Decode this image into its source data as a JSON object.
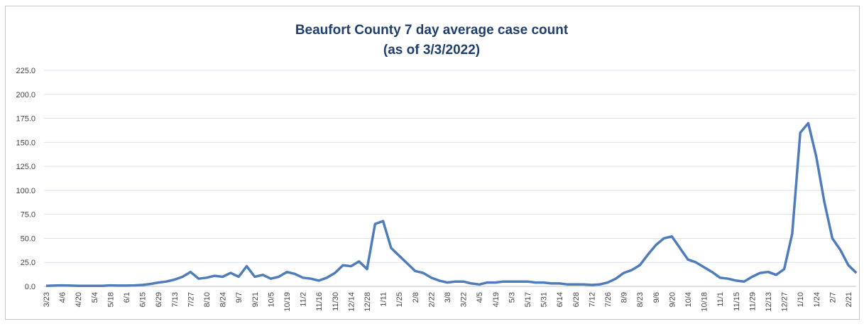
{
  "chart_data": {
    "type": "line",
    "title": [
      "Beaufort County 7 day average case count",
      "(as of 3/3/2022)"
    ],
    "categories": [
      "3/23",
      null,
      "4/6",
      null,
      "4/20",
      null,
      "5/4",
      null,
      "5/18",
      null,
      "6/1",
      null,
      "6/15",
      null,
      "6/29",
      null,
      "7/13",
      null,
      "7/27",
      null,
      "8/10",
      null,
      "8/24",
      null,
      "9/7",
      null,
      "9/21",
      null,
      "10/5",
      null,
      "10/19",
      null,
      "11/2",
      null,
      "11/16",
      null,
      "11/30",
      null,
      "12/14",
      null,
      "12/28",
      null,
      "1/11",
      null,
      "1/25",
      null,
      "2/8",
      null,
      "2/22",
      null,
      "3/8",
      null,
      "3/22",
      null,
      "4/5",
      null,
      "4/19",
      null,
      "5/3",
      null,
      "5/17",
      null,
      "5/31",
      null,
      "6/14",
      null,
      "6/28",
      null,
      "7/12",
      null,
      "7/26",
      null,
      "8/9",
      null,
      "8/23",
      null,
      "9/6",
      null,
      "9/20",
      null,
      "10/4",
      null,
      "10/18",
      null,
      "11/1",
      null,
      "11/15",
      null,
      "11/29",
      null,
      "12/13",
      null,
      "12/27",
      null,
      "1/10",
      null,
      "1/24",
      null,
      "2/7",
      null,
      "2/21",
      null
    ],
    "series": [
      {
        "name": "7 day average",
        "color": "#4f7cba",
        "values": [
          0.5,
          0.8,
          1,
          0.8,
          0.5,
          0.5,
          0.6,
          0.5,
          1,
          0.8,
          0.8,
          1,
          1.5,
          2.5,
          4,
          5,
          7,
          10,
          15,
          8,
          9,
          11,
          10,
          14,
          10,
          21,
          10,
          12,
          8,
          10,
          15,
          13,
          9,
          8,
          6,
          9,
          14,
          22,
          21,
          26,
          18,
          65,
          68,
          40,
          32,
          24,
          16,
          14,
          9,
          6,
          4,
          5,
          5,
          3,
          2,
          4,
          4,
          5,
          5,
          5,
          5,
          4,
          4,
          3,
          3,
          2,
          2,
          2,
          1.5,
          2,
          4,
          8,
          14,
          17,
          22,
          33,
          43,
          50,
          52,
          40,
          28,
          25,
          20,
          15,
          9,
          8,
          6,
          5,
          10,
          14,
          15,
          12,
          18,
          55,
          160,
          170,
          135,
          88,
          50,
          38,
          22,
          14
        ]
      }
    ],
    "ylim": [
      0,
      225
    ],
    "yticks": [
      {
        "value": 0,
        "label": "0.0"
      },
      {
        "value": 25,
        "label": "25.0"
      },
      {
        "value": 50,
        "label": "50.0"
      },
      {
        "value": 75,
        "label": "75.0"
      },
      {
        "value": 100,
        "label": "100.0"
      },
      {
        "value": 125,
        "label": "125.0"
      },
      {
        "value": 150,
        "label": "150.0"
      },
      {
        "value": 175,
        "label": "175.0"
      },
      {
        "value": 200,
        "label": "200.0"
      },
      {
        "value": 225,
        "label": "225.0"
      }
    ],
    "grid": true
  }
}
